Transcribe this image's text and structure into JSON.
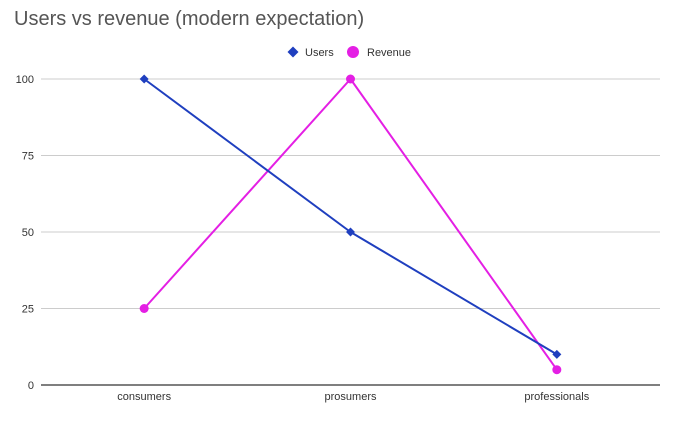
{
  "chart_data": {
    "type": "line",
    "title": "Users vs revenue (modern expectation)",
    "categories": [
      "consumers",
      "prosumers",
      "professionals"
    ],
    "series": [
      {
        "name": "Users",
        "values": [
          100,
          50,
          10
        ],
        "color": "#1f3fbf",
        "marker": "diamond"
      },
      {
        "name": "Revenue",
        "values": [
          25,
          100,
          5
        ],
        "color": "#e41fe4",
        "marker": "circle"
      }
    ],
    "y_ticks": [
      "0",
      "25",
      "50",
      "75",
      "100"
    ],
    "ylim": [
      0,
      100
    ],
    "xlabel": "",
    "ylabel": "",
    "grid": true,
    "legend_position": "top-center"
  }
}
